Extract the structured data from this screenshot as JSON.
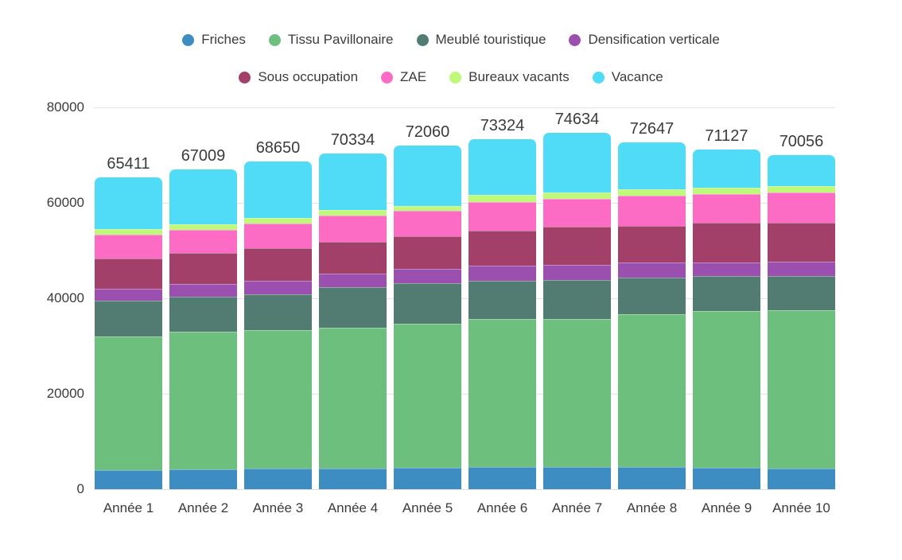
{
  "chart_data": {
    "type": "bar",
    "stacked": true,
    "title": "",
    "xlabel": "",
    "ylabel": "",
    "categories": [
      "Année 1",
      "Année 2",
      "Année 3",
      "Année 4",
      "Année 5",
      "Année 6",
      "Année 7",
      "Année 8",
      "Année 9",
      "Année 10"
    ],
    "series": [
      {
        "key": "friches",
        "name": "Friches",
        "color": "#3D8DC3",
        "values": [
          4000,
          4200,
          4300,
          4400,
          4500,
          4650,
          4750,
          4650,
          4500,
          4350
        ]
      },
      {
        "key": "tissu-pavillonaire",
        "name": "Tissu Pavillonaire",
        "color": "#6DBF7D",
        "values": [
          28000,
          28750,
          29000,
          29500,
          30100,
          31000,
          31000,
          32000,
          32900,
          33100
        ]
      },
      {
        "key": "meuble-touristique",
        "name": "Meublé touristique",
        "color": "#527B72",
        "values": [
          7450,
          7470,
          7600,
          8450,
          8550,
          8050,
          8130,
          7700,
          7220,
          7160
        ]
      },
      {
        "key": "densification-verticale",
        "name": "Densification verticale",
        "color": "#9B4FAF",
        "values": [
          2590,
          2650,
          2700,
          2880,
          3020,
          3160,
          3050,
          3090,
          2930,
          3040
        ]
      },
      {
        "key": "sous-occupation",
        "name": "Sous occupation",
        "color": "#A34069",
        "values": [
          6360,
          6470,
          6950,
          6630,
          6900,
          7370,
          8010,
          7750,
          8270,
          8160
        ]
      },
      {
        "key": "zae",
        "name": "ZAE",
        "color": "#FC6CC4",
        "values": [
          4860,
          4880,
          5080,
          5520,
          5240,
          5940,
          5970,
          6310,
          5950,
          6340
        ]
      },
      {
        "key": "bureaux-vacants",
        "name": "Bureaux vacants",
        "color": "#BEF979",
        "values": [
          1210,
          1100,
          1210,
          1110,
          1090,
          1430,
          1330,
          1380,
          1330,
          1330
        ]
      },
      {
        "key": "vacance",
        "name": "Vacance",
        "color": "#50DBF7",
        "values": [
          10941,
          11489,
          11810,
          11844,
          12660,
          11724,
          12394,
          9767,
          8027,
          6576
        ]
      }
    ],
    "totals": [
      65411,
      67009,
      68650,
      70334,
      72060,
      73324,
      74634,
      72647,
      71127,
      70056
    ],
    "total_labels": [
      "65411",
      "67009",
      "68650",
      "70334",
      "72060",
      "73324",
      "74634",
      "72647",
      "71127",
      "70056"
    ],
    "y_axis": {
      "tick_values": [
        0,
        20000,
        40000,
        60000,
        80000
      ],
      "tick_labels": [
        "0",
        "20000",
        "40000",
        "60000",
        "80000"
      ],
      "max": 80000,
      "gridlines": true,
      "labels_clipped_on_left": true
    },
    "legend": {
      "position": "top",
      "rows": [
        [
          "Friches",
          "Tissu Pavillonaire",
          "Meublé touristique",
          "Densification verticale"
        ],
        [
          "Sous occupation",
          "ZAE",
          "Bureaux vacants",
          "Vacance"
        ]
      ]
    },
    "colors": {
      "grid": "#E2E2E2",
      "text": "#3B3B3B",
      "background": "#FFFFFF"
    }
  }
}
